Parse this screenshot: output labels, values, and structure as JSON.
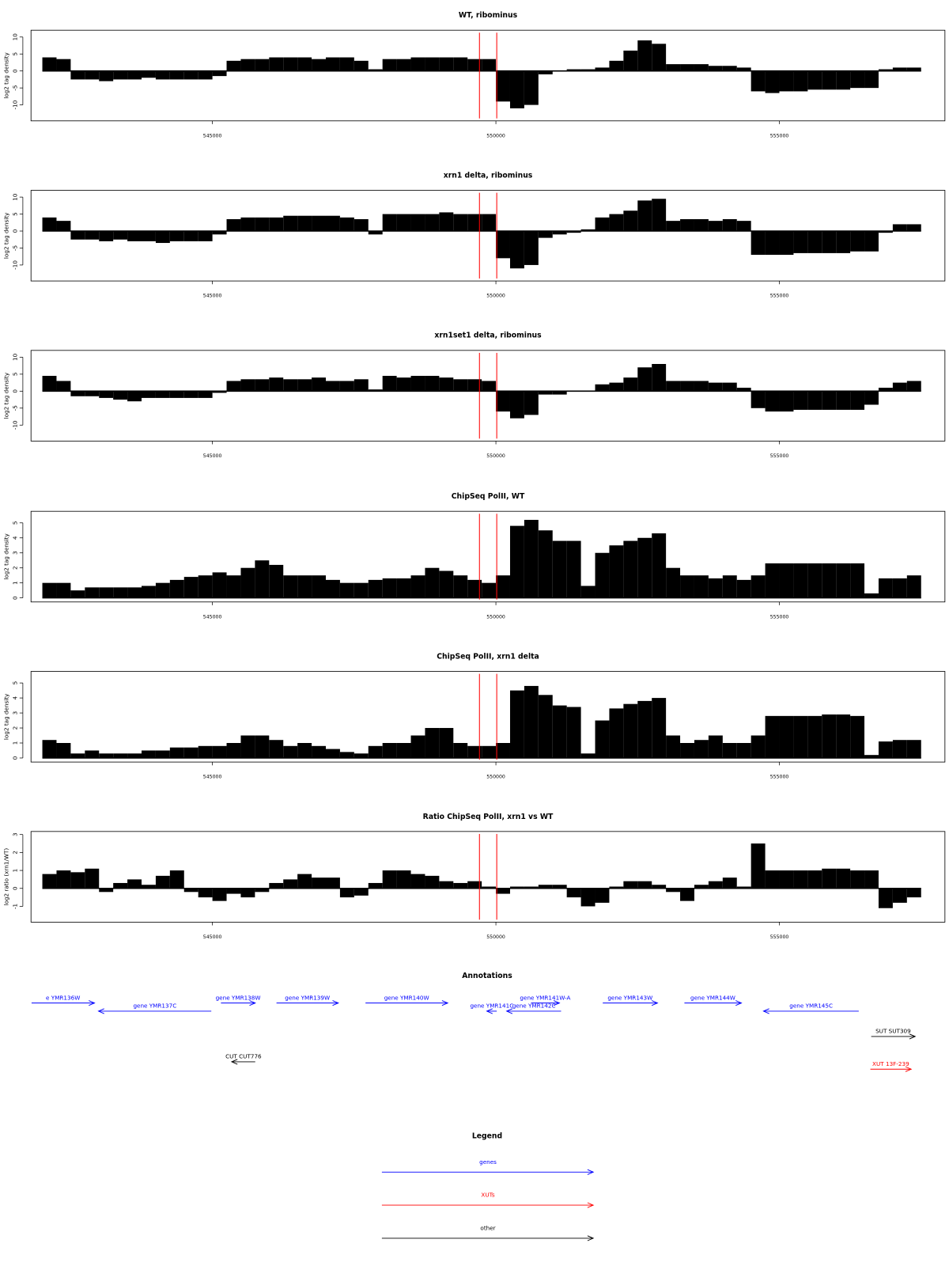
{
  "chart_data": [
    {
      "type": "bar",
      "title": "WT, ribominus",
      "ylabel": "log2 tag density",
      "color": "#000000",
      "xlim": [
        541800,
        557920
      ],
      "xticks": [
        545000,
        550000,
        555000
      ],
      "ylim": [
        -14.7,
        12
      ],
      "yticks": [
        -10,
        -5,
        0,
        5,
        10
      ],
      "x": [
        542000,
        542250,
        542500,
        542750,
        543000,
        543250,
        543500,
        543750,
        544000,
        544250,
        544500,
        544750,
        545000,
        545250,
        545500,
        545750,
        546000,
        546250,
        546500,
        546750,
        547000,
        547250,
        547500,
        547750,
        548000,
        548250,
        548500,
        548750,
        549000,
        549250,
        549500,
        549750,
        550000,
        550250,
        550500,
        550750,
        551000,
        551250,
        551500,
        551750,
        552000,
        552250,
        552500,
        552750,
        553000,
        553250,
        553500,
        553750,
        554000,
        554250,
        554500,
        554750,
        555000,
        555250,
        555500,
        555750,
        556000,
        556250,
        556500,
        556750,
        557000,
        557250
      ],
      "values": [
        4,
        3.5,
        -2.5,
        -2.5,
        -3,
        -2.5,
        -2.5,
        -2,
        -2.5,
        -2.5,
        -2.5,
        -2.5,
        -1.5,
        3,
        3.5,
        3.5,
        4,
        4,
        4,
        3.5,
        4,
        4,
        3,
        0.5,
        3.5,
        3.5,
        4,
        4,
        4,
        4,
        3.5,
        3.5,
        -9,
        -11,
        -10,
        -1,
        0,
        0.5,
        0.5,
        1,
        3,
        6,
        9,
        8,
        2,
        2,
        2,
        1.5,
        1.5,
        1,
        -6,
        -6.5,
        -6,
        -6,
        -5.5,
        -5.5,
        -5.5,
        -5,
        -5,
        0.5,
        1,
        1
      ]
    },
    {
      "type": "bar",
      "title": "xrn1 delta, ribominus",
      "ylabel": "log2 tag density",
      "color": "#000000",
      "xlim": [
        541800,
        557920
      ],
      "xticks": [
        545000,
        550000,
        555000
      ],
      "ylim": [
        -14.7,
        12
      ],
      "yticks": [
        -10,
        -5,
        0,
        5,
        10
      ],
      "x": [
        542000,
        542250,
        542500,
        542750,
        543000,
        543250,
        543500,
        543750,
        544000,
        544250,
        544500,
        544750,
        545000,
        545250,
        545500,
        545750,
        546000,
        546250,
        546500,
        546750,
        547000,
        547250,
        547500,
        547750,
        548000,
        548250,
        548500,
        548750,
        549000,
        549250,
        549500,
        549750,
        550000,
        550250,
        550500,
        550750,
        551000,
        551250,
        551500,
        551750,
        552000,
        552250,
        552500,
        552750,
        553000,
        553250,
        553500,
        553750,
        554000,
        554250,
        554500,
        554750,
        555000,
        555250,
        555500,
        555750,
        556000,
        556250,
        556500,
        556750,
        557000,
        557250
      ],
      "values": [
        4,
        3,
        -2.5,
        -2.5,
        -3,
        -2.5,
        -3,
        -3,
        -3.5,
        -3,
        -3,
        -3,
        -1,
        3.5,
        4,
        4,
        4,
        4.5,
        4.5,
        4.5,
        4.5,
        4,
        3.5,
        -1,
        5,
        5,
        5,
        5,
        5.5,
        5,
        5,
        5,
        -8,
        -11,
        -10,
        -2,
        -1,
        -0.5,
        0.5,
        4,
        5,
        6,
        9,
        9.5,
        3,
        3.5,
        3.5,
        3,
        3.5,
        3,
        -7,
        -7,
        -7,
        -6.5,
        -6.5,
        -6.5,
        -6.5,
        -6,
        -6,
        -0.5,
        2,
        2
      ]
    },
    {
      "type": "bar",
      "title": "xrn1set1 delta, ribominus",
      "ylabel": "log2 tag density",
      "color": "#000000",
      "xlim": [
        541800,
        557920
      ],
      "xticks": [
        545000,
        550000,
        555000
      ],
      "ylim": [
        -14.7,
        12
      ],
      "yticks": [
        -10,
        -5,
        0,
        5,
        10
      ],
      "x": [
        542000,
        542250,
        542500,
        542750,
        543000,
        543250,
        543500,
        543750,
        544000,
        544250,
        544500,
        544750,
        545000,
        545250,
        545500,
        545750,
        546000,
        546250,
        546500,
        546750,
        547000,
        547250,
        547500,
        547750,
        548000,
        548250,
        548500,
        548750,
        549000,
        549250,
        549500,
        549750,
        550000,
        550250,
        550500,
        550750,
        551000,
        551250,
        551500,
        551750,
        552000,
        552250,
        552500,
        552750,
        553000,
        553250,
        553500,
        553750,
        554000,
        554250,
        554500,
        554750,
        555000,
        555250,
        555500,
        555750,
        556000,
        556250,
        556500,
        556750,
        557000,
        557250
      ],
      "values": [
        4.5,
        3,
        -1.5,
        -1.5,
        -2,
        -2.5,
        -3,
        -2,
        -2,
        -2,
        -2,
        -2,
        -0.5,
        3,
        3.5,
        3.5,
        4,
        3.5,
        3.5,
        4,
        3,
        3,
        3.5,
        0.5,
        4.5,
        4,
        4.5,
        4.5,
        4,
        3.5,
        3.5,
        3,
        -6,
        -8,
        -7,
        -1,
        -1,
        0,
        0,
        2,
        2.5,
        4,
        7,
        8,
        3,
        3,
        3,
        2.5,
        2.5,
        1,
        -5,
        -6,
        -6,
        -5.5,
        -5.5,
        -5.5,
        -5.5,
        -5.5,
        -4,
        1,
        2.5,
        3
      ]
    },
    {
      "type": "bar",
      "title": "ChipSeq PolII, WT",
      "ylabel": "log2 tag density",
      "color": "#000000",
      "xlim": [
        541800,
        557920
      ],
      "xticks": [
        545000,
        550000,
        555000
      ],
      "ylim": [
        -0.27,
        5.77
      ],
      "yticks": [
        0,
        1,
        2,
        3,
        4,
        5
      ],
      "x": [
        542000,
        542250,
        542500,
        542750,
        543000,
        543250,
        543500,
        543750,
        544000,
        544250,
        544500,
        544750,
        545000,
        545250,
        545500,
        545750,
        546000,
        546250,
        546500,
        546750,
        547000,
        547250,
        547500,
        547750,
        548000,
        548250,
        548500,
        548750,
        549000,
        549250,
        549500,
        549750,
        550000,
        550250,
        550500,
        550750,
        551000,
        551250,
        551500,
        551750,
        552000,
        552250,
        552500,
        552750,
        553000,
        553250,
        553500,
        553750,
        554000,
        554250,
        554500,
        554750,
        555000,
        555250,
        555500,
        555750,
        556000,
        556250,
        556500,
        556750,
        557000,
        557250
      ],
      "values": [
        1,
        1,
        0.5,
        0.7,
        0.7,
        0.7,
        0.7,
        0.8,
        1,
        1.2,
        1.4,
        1.5,
        1.7,
        1.5,
        2,
        2.5,
        2.2,
        1.5,
        1.5,
        1.5,
        1.2,
        1,
        1,
        1.2,
        1.3,
        1.3,
        1.5,
        2,
        1.8,
        1.5,
        1.2,
        1,
        1.5,
        4.8,
        5.2,
        4.5,
        3.8,
        3.8,
        0.8,
        3,
        3.5,
        3.8,
        4,
        4.3,
        2,
        1.5,
        1.5,
        1.3,
        1.5,
        1.2,
        1.5,
        2.3,
        2.3,
        2.3,
        2.3,
        2.3,
        2.3,
        2.3,
        0.3,
        1.3,
        1.3,
        1.5
      ]
    },
    {
      "type": "bar",
      "title": "ChipSeq PolII, xrn1 delta",
      "ylabel": "log2 tag density",
      "color": "#000000",
      "xlim": [
        541800,
        557920
      ],
      "xticks": [
        545000,
        550000,
        555000
      ],
      "ylim": [
        -0.27,
        5.77
      ],
      "yticks": [
        0,
        1,
        2,
        3,
        4,
        5
      ],
      "x": [
        542000,
        542250,
        542500,
        542750,
        543000,
        543250,
        543500,
        543750,
        544000,
        544250,
        544500,
        544750,
        545000,
        545250,
        545500,
        545750,
        546000,
        546250,
        546500,
        546750,
        547000,
        547250,
        547500,
        547750,
        548000,
        548250,
        548500,
        548750,
        549000,
        549250,
        549500,
        549750,
        550000,
        550250,
        550500,
        550750,
        551000,
        551250,
        551500,
        551750,
        552000,
        552250,
        552500,
        552750,
        553000,
        553250,
        553500,
        553750,
        554000,
        554250,
        554500,
        554750,
        555000,
        555250,
        555500,
        555750,
        556000,
        556250,
        556500,
        556750,
        557000,
        557250
      ],
      "values": [
        1.2,
        1,
        0.3,
        0.5,
        0.3,
        0.3,
        0.3,
        0.5,
        0.5,
        0.7,
        0.7,
        0.8,
        0.8,
        1,
        1.5,
        1.5,
        1.2,
        0.8,
        1,
        0.8,
        0.6,
        0.4,
        0.3,
        0.8,
        1,
        1,
        1.5,
        2,
        2,
        1,
        0.8,
        0.8,
        1,
        4.5,
        4.8,
        4.2,
        3.5,
        3.4,
        0.3,
        2.5,
        3.3,
        3.6,
        3.8,
        4,
        1.5,
        1,
        1.2,
        1.5,
        1,
        1,
        1.5,
        2.8,
        2.8,
        2.8,
        2.8,
        2.9,
        2.9,
        2.8,
        0.2,
        1.1,
        1.2,
        1.2
      ]
    },
    {
      "type": "bar",
      "title": "Ratio ChipSeq PolII, xrn1 vs WT",
      "ylabel": "log2 ratio (xrn1/WT)",
      "color": "#000000",
      "xlim": [
        541800,
        557920
      ],
      "xticks": [
        545000,
        550000,
        555000
      ],
      "ylim": [
        -1.88,
        3.17
      ],
      "yticks": [
        -1,
        0,
        1,
        2,
        3
      ],
      "x": [
        542000,
        542250,
        542500,
        542750,
        543000,
        543250,
        543500,
        543750,
        544000,
        544250,
        544500,
        544750,
        545000,
        545250,
        545500,
        545750,
        546000,
        546250,
        546500,
        546750,
        547000,
        547250,
        547500,
        547750,
        548000,
        548250,
        548500,
        548750,
        549000,
        549250,
        549500,
        549750,
        550000,
        550250,
        550500,
        550750,
        551000,
        551250,
        551500,
        551750,
        552000,
        552250,
        552500,
        552750,
        553000,
        553250,
        553500,
        553750,
        554000,
        554250,
        554500,
        554750,
        555000,
        555250,
        555500,
        555750,
        556000,
        556250,
        556500,
        556750,
        557000,
        557250
      ],
      "values": [
        0.8,
        1,
        0.9,
        1.1,
        -0.2,
        0.3,
        0.5,
        0.2,
        0.7,
        1,
        -0.2,
        -0.5,
        -0.7,
        -0.3,
        -0.5,
        -0.2,
        0.3,
        0.5,
        0.8,
        0.6,
        0.6,
        -0.5,
        -0.4,
        0.3,
        1,
        1,
        0.8,
        0.7,
        0.4,
        0.3,
        0.4,
        0.1,
        -0.3,
        0.1,
        0.1,
        0.2,
        0.2,
        -0.5,
        -1,
        -0.8,
        0.1,
        0.4,
        0.4,
        0.2,
        -0.2,
        -0.7,
        0.2,
        0.4,
        0.6,
        0.1,
        2.5,
        1,
        1,
        1,
        1,
        1.1,
        1.1,
        1,
        1,
        -1.1,
        -0.8,
        -0.5
      ]
    }
  ],
  "markers": {
    "color": "#ff0000",
    "x": [
      549710,
      550015
    ]
  },
  "annotations": {
    "title": "Annotations",
    "xlim": [
      541800,
      557920
    ],
    "features": [
      {
        "label": "e YMR136W",
        "start": 541810,
        "end": 542920,
        "strand": "+",
        "color": "#0000ff"
      },
      {
        "label": "gene YMR137C",
        "start": 542990,
        "end": 544980,
        "strand": "-",
        "color": "#0000ff"
      },
      {
        "label": "gene YMR138W",
        "start": 545150,
        "end": 545755,
        "strand": "+",
        "color": "#0000ff"
      },
      {
        "label": "gene YMR139W",
        "start": 546130,
        "end": 547220,
        "strand": "+",
        "color": "#0000ff"
      },
      {
        "label": "gene YMR140W",
        "start": 547700,
        "end": 549150,
        "strand": "+",
        "color": "#0000ff"
      },
      {
        "label": "gene YMR141C",
        "start": 549840,
        "end": 550015,
        "strand": "-",
        "color": "#0000ff"
      },
      {
        "label": "gene YMR141W-A",
        "start": 550620,
        "end": 551120,
        "strand": "+",
        "color": "#0000ff"
      },
      {
        "label": "gene YMR142C",
        "start": 550190,
        "end": 551150,
        "strand": "-",
        "color": "#0000ff"
      },
      {
        "label": "gene YMR143W",
        "start": 551885,
        "end": 552850,
        "strand": "+",
        "color": "#0000ff"
      },
      {
        "label": "gene YMR144W",
        "start": 553325,
        "end": 554330,
        "strand": "+",
        "color": "#0000ff"
      },
      {
        "label": "gene YMR145C",
        "start": 554720,
        "end": 556400,
        "strand": "-",
        "color": "#0000ff"
      },
      {
        "label": "SUT SUT309",
        "start": 556620,
        "end": 557395,
        "strand": "+",
        "color": "#000000"
      },
      {
        "label": "CUT CUT776",
        "start": 545340,
        "end": 545755,
        "strand": "-",
        "color": "#000000"
      },
      {
        "label": "XUT 13F-239",
        "start": 556605,
        "end": 557325,
        "strand": "+",
        "color": "#ff0000"
      }
    ]
  },
  "legend": {
    "title": "Legend",
    "items": [
      {
        "label": "genes",
        "color": "#0000ff"
      },
      {
        "label": "XUTs",
        "color": "#ff0000"
      },
      {
        "label": "other",
        "color": "#000000"
      }
    ]
  }
}
